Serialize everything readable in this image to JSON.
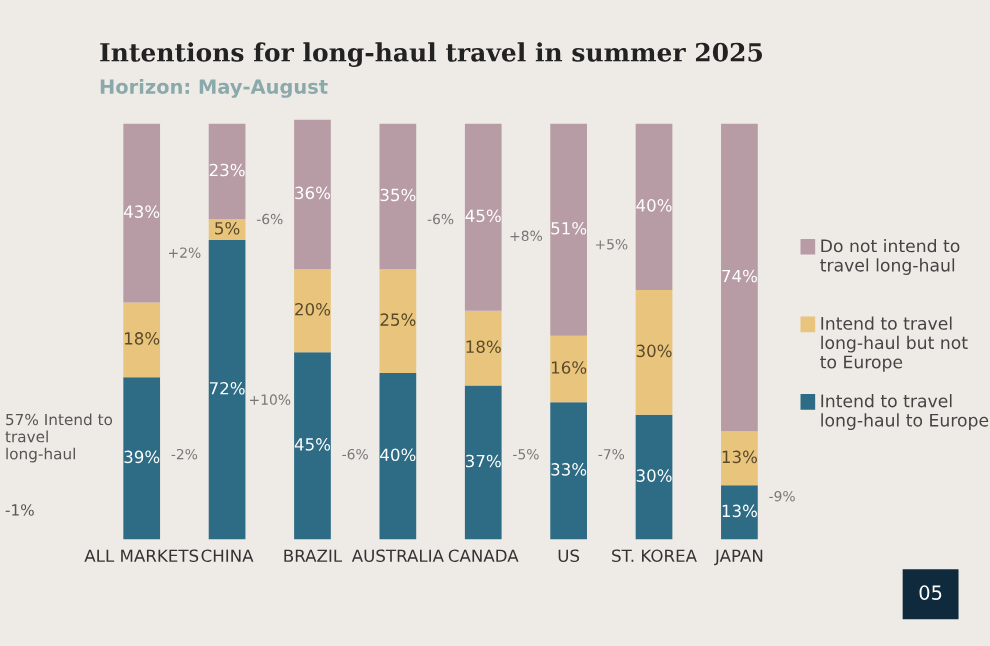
{
  "chart_data": {
    "type": "bar",
    "title": "Intentions for long-haul travel in summer 2025",
    "subtitle": "Horizon: May-August",
    "stacked": true,
    "legend": "right",
    "categories": [
      "ALL MARKETS",
      "CHINA",
      "BRAZIL",
      "AUSTRALIA",
      "CANADA",
      "US",
      "ST. KOREA",
      "JAPAN"
    ],
    "series": [
      {
        "name": "Intend to travel long-haul to Europe",
        "color": "#2e6b84",
        "values": [
          39,
          72,
          45,
          40,
          37,
          33,
          30,
          13
        ],
        "value_labels": [
          "39%",
          "72%",
          "45%",
          "40%",
          "37%",
          "33%",
          "30%",
          "13%"
        ]
      },
      {
        "name": "Intend to travel long-haul but not to Europe",
        "color": "#e8c47c",
        "values": [
          18,
          5,
          20,
          25,
          18,
          16,
          30,
          13
        ],
        "value_labels": [
          "18%",
          "5%",
          "20%",
          "25%",
          "18%",
          "16%",
          "30%",
          "13%"
        ]
      },
      {
        "name": "Do not intend to travel long-haul",
        "color": "#b79ca6",
        "values": [
          43,
          23,
          36,
          35,
          45,
          51,
          40,
          74
        ],
        "value_labels": [
          "43%",
          "23%",
          "36%",
          "35%",
          "45%",
          "51%",
          "40%",
          "74%"
        ]
      }
    ],
    "annotations": [
      "+2%",
      "-2%",
      "-6%",
      "+10%",
      "-6%",
      "-6%",
      "+8%",
      "-5%",
      "+5%",
      "-7%",
      "-9%",
      "57% Intend to travel long-haul",
      "-1%",
      "05"
    ]
  }
}
